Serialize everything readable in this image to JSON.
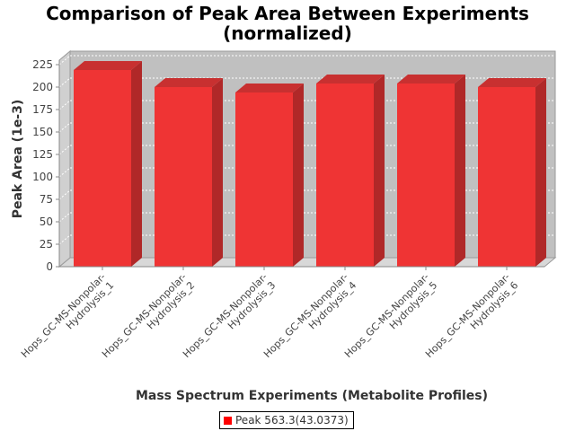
{
  "chart_data": {
    "type": "bar",
    "title": [
      "Comparison of Peak Area Between Experiments",
      "(normalized)"
    ],
    "xlabel": "Mass Spectrum Experiments (Metabolite Profiles)",
    "ylabel": "Peak Area (1e-3)",
    "categories": [
      [
        "Hops_GC-MS-Nonpolar-",
        "Hydrolysis_1"
      ],
      [
        "Hops_GC-MS-Nonpolar-",
        "Hydrolysis_2"
      ],
      [
        "Hops_GC-MS-Nonpolar-",
        "Hydrolysis_3"
      ],
      [
        "Hops_GC-MS-Nonpolar-",
        "Hydrolysis_4"
      ],
      [
        "Hops_GC-MS-Nonpolar-",
        "Hydrolysis_5"
      ],
      [
        "Hops_GC-MS-Nonpolar-",
        "Hydrolysis_6"
      ]
    ],
    "series": [
      {
        "name": "Peak 563.3(43.0373)",
        "values": [
          219,
          200,
          194,
          204,
          204,
          200
        ]
      }
    ],
    "ylim": [
      0,
      230
    ],
    "yticks": [
      0,
      25,
      50,
      75,
      100,
      125,
      150,
      175,
      200,
      225
    ],
    "grid": true,
    "legend_position": "bottom",
    "colors": {
      "bar_front": "#ef3434",
      "bar_side": "#b02828",
      "bar_top": "#c83030",
      "plot_back": "#c0c0c0",
      "plot_floor": "#d8d8d8",
      "plot_wall": "#d0d0d0",
      "legend_swatch": "#ff0000"
    }
  }
}
